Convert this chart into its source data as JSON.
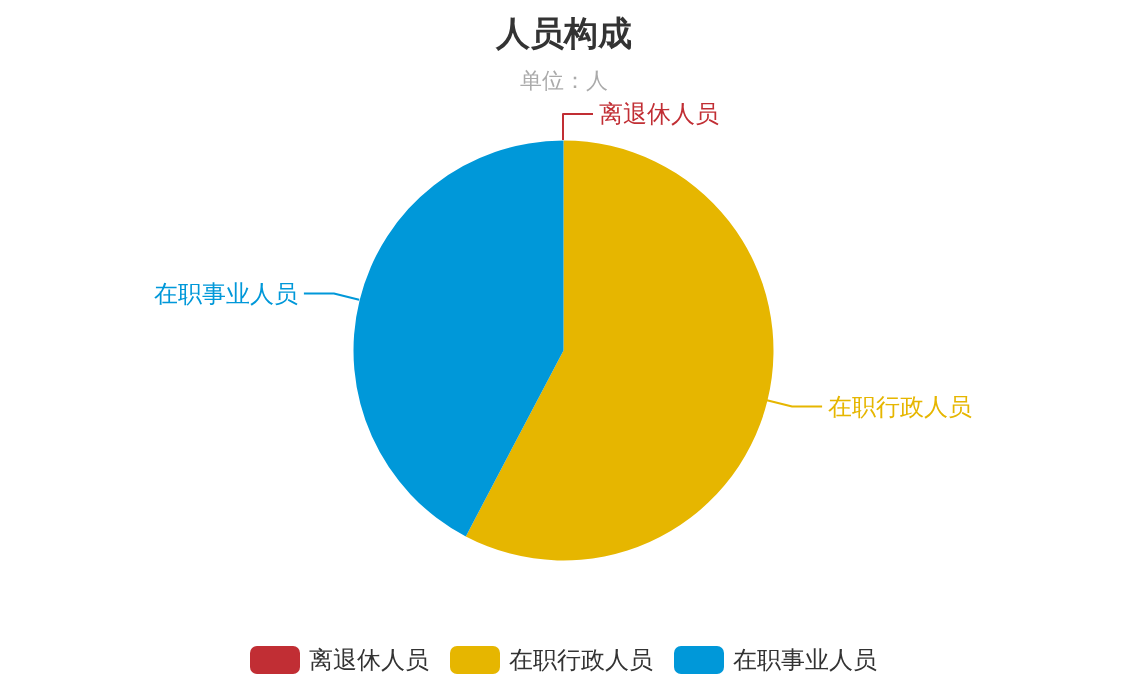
{
  "chart_data": {
    "type": "pie",
    "title": "人员构成",
    "subtitle": "单位：人",
    "categories": [
      "离退休人员",
      "在职行政人员",
      "在职事业人员"
    ],
    "values": [
      0,
      57.7,
      42.3
    ],
    "colors": [
      "#c12e34",
      "#e6b600",
      "#0098d9"
    ],
    "legend": "bottom"
  }
}
